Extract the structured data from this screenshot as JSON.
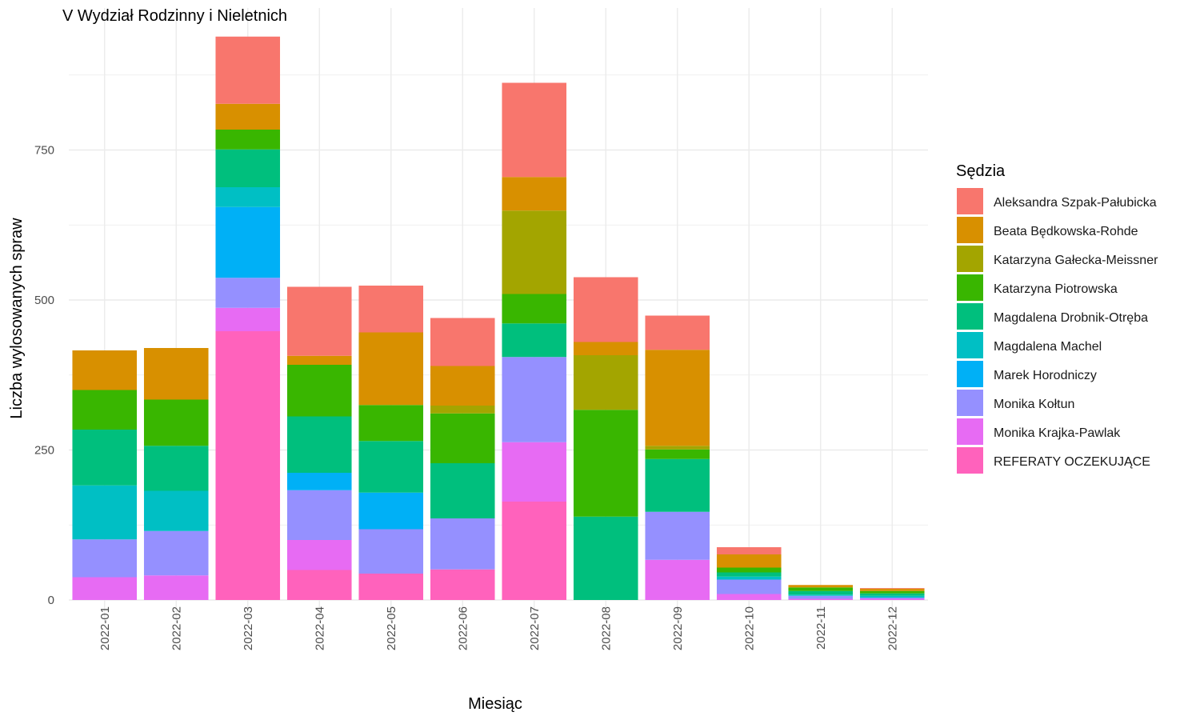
{
  "chart_data": {
    "type": "bar",
    "stacked": true,
    "title": "V Wydział Rodzinny i Nieletnich",
    "xlabel": "Miesiąc",
    "ylabel": "Liczba wylosowanych spraw",
    "ylim": [
      0,
      950
    ],
    "yticks": [
      0,
      250,
      500,
      750
    ],
    "grid": true,
    "legend_position": "right",
    "legend_title": "Sędzia",
    "categories": [
      "2022-01",
      "2022-02",
      "2022-03",
      "2022-04",
      "2022-05",
      "2022-06",
      "2022-07",
      "2022-08",
      "2022-09",
      "2022-10",
      "2022-11",
      "2022-12"
    ],
    "series": [
      {
        "name": "Aleksandra Szpak-Pałubicka",
        "color": "#F8766D",
        "values": [
          0,
          0,
          112,
          115,
          78,
          80,
          157,
          108,
          57,
          12,
          0,
          1
        ]
      },
      {
        "name": "Beata Będkowska-Rohde",
        "color": "#D89000",
        "values": [
          66,
          86,
          43,
          15,
          121,
          66,
          56,
          22,
          160,
          22,
          4,
          4
        ]
      },
      {
        "name": "Katarzyna Gałecka-Meissner",
        "color": "#A3A500",
        "values": [
          0,
          0,
          0,
          0,
          0,
          13,
          139,
          91,
          6,
          0,
          0,
          0
        ]
      },
      {
        "name": "Katarzyna Piotrowska",
        "color": "#39B600",
        "values": [
          66,
          77,
          33,
          86,
          60,
          83,
          49,
          178,
          16,
          8,
          6,
          4
        ]
      },
      {
        "name": "Magdalena Drobnik-Otręba",
        "color": "#00BF7D",
        "values": [
          93,
          75,
          63,
          94,
          86,
          92,
          56,
          139,
          88,
          7,
          6,
          4
        ]
      },
      {
        "name": "Magdalena Machel",
        "color": "#00BFC4",
        "values": [
          90,
          67,
          33,
          0,
          0,
          0,
          0,
          0,
          0,
          5,
          2,
          3
        ]
      },
      {
        "name": "Marek Horodniczy",
        "color": "#00B0F6",
        "values": [
          0,
          0,
          118,
          29,
          61,
          0,
          0,
          0,
          0,
          0,
          0,
          0
        ]
      },
      {
        "name": "Monika Kołtun",
        "color": "#9590FF",
        "values": [
          63,
          74,
          50,
          83,
          74,
          85,
          142,
          0,
          80,
          24,
          5,
          2
        ]
      },
      {
        "name": "Monika Krajka-Pawlak",
        "color": "#E76BF3",
        "values": [
          38,
          41,
          39,
          50,
          0,
          0,
          99,
          0,
          67,
          10,
          2,
          2
        ]
      },
      {
        "name": "REFERATY OCZEKUJĄCE",
        "color": "#FF62BC",
        "values": [
          0,
          0,
          448,
          50,
          44,
          51,
          164,
          0,
          0,
          0,
          0,
          0
        ]
      }
    ]
  }
}
